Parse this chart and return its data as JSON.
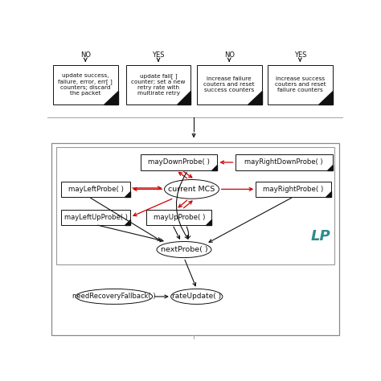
{
  "bg_color": "#ffffff",
  "top_labels": [
    "NO",
    "YES",
    "NO",
    "YES"
  ],
  "top_boxes": [
    "update success,\nfailure, error, err[ ]\ncounters; discard\nthe packet",
    "update fail[ ]\ncounter; set a new\nretry rate with\nmultirate retry",
    "increase failure\ncouters and reset\nsuccess counters",
    "increase success\ncouters and reset\nfailure counters"
  ],
  "lp_label": "LP",
  "lp_color": "#2e8b8b",
  "red_color": "#cc0000",
  "black_color": "#111111",
  "font_size": 6.0
}
